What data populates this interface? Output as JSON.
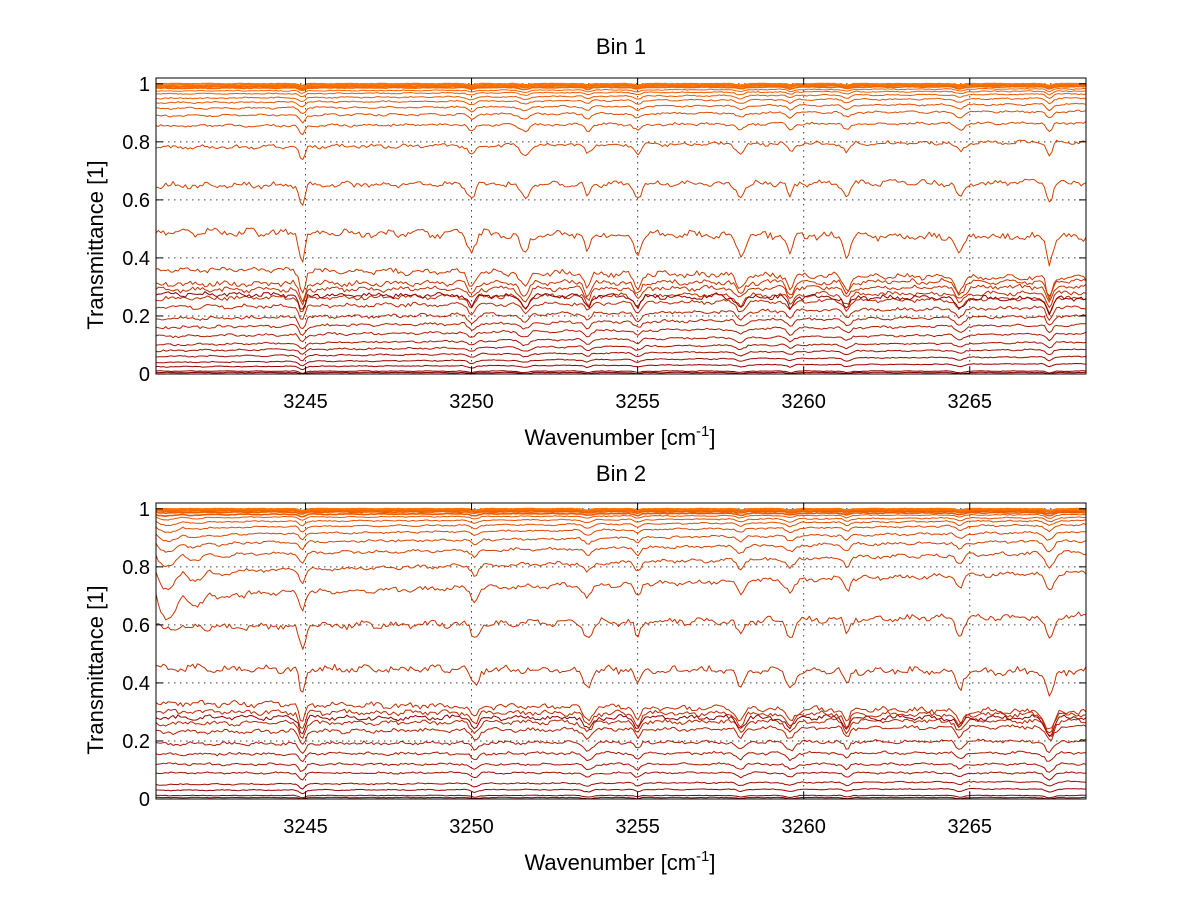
{
  "chart_data": [
    {
      "type": "line",
      "title": "Bin 1",
      "xlabel": "Wavenumber [cm",
      "xlabel_superscript": "-1",
      "xlabel_suffix": "]",
      "ylabel": "Transmittance [1]",
      "xlim": [
        3240.5,
        3268.5
      ],
      "ylim": [
        0,
        1.02
      ],
      "xticks": [
        3245,
        3250,
        3255,
        3260,
        3265
      ],
      "yticks": [
        0,
        0.2,
        0.4,
        0.6,
        0.8,
        1
      ],
      "ytick_labels": [
        "0",
        "0.2",
        "0.4",
        "0.6",
        "0.8",
        "1"
      ],
      "grid": true,
      "absorption_lines": [
        3244.9,
        3250.0,
        3251.6,
        3253.5,
        3255.0,
        3258.1,
        3259.6,
        3261.3,
        3264.7,
        3267.4
      ],
      "series": [
        {
          "color": "#8b0000",
          "values": [
            0.005,
            0.005
          ]
        },
        {
          "color": "#8b0000",
          "values": [
            0.01,
            0.01
          ]
        },
        {
          "color": "#990000",
          "values": [
            0.025,
            0.035
          ]
        },
        {
          "color": "#9b0a00",
          "values": [
            0.04,
            0.06
          ]
        },
        {
          "color": "#a00f00",
          "values": [
            0.06,
            0.085
          ]
        },
        {
          "color": "#a51400",
          "values": [
            0.08,
            0.11
          ]
        },
        {
          "color": "#aa1800",
          "values": [
            0.1,
            0.14
          ]
        },
        {
          "color": "#ae1c00",
          "values": [
            0.13,
            0.17
          ]
        },
        {
          "color": "#b22000",
          "values": [
            0.16,
            0.2
          ]
        },
        {
          "color": "#b62400",
          "values": [
            0.19,
            0.23
          ]
        },
        {
          "color": "#ba2800",
          "values": [
            0.23,
            0.26
          ]
        },
        {
          "color": "#be2c00",
          "values": [
            0.26,
            0.28
          ]
        },
        {
          "color": "#8b0000",
          "values": [
            0.275,
            0.26
          ]
        },
        {
          "color": "#c23000",
          "values": [
            0.29,
            0.3
          ]
        },
        {
          "color": "#c63400",
          "values": [
            0.31,
            0.32
          ]
        },
        {
          "color": "#ca3800",
          "values": [
            0.36,
            0.33
          ]
        },
        {
          "color": "#ce3c00",
          "values": [
            0.49,
            0.47
          ]
        },
        {
          "color": "#d24000",
          "values": [
            0.65,
            0.66
          ]
        },
        {
          "color": "#d64400",
          "values": [
            0.78,
            0.8
          ]
        },
        {
          "color": "#da4800",
          "values": [
            0.855,
            0.865
          ]
        },
        {
          "color": "#de4c00",
          "values": [
            0.89,
            0.905
          ]
        },
        {
          "color": "#e25000",
          "values": [
            0.915,
            0.93
          ]
        },
        {
          "color": "#e65400",
          "values": [
            0.935,
            0.95
          ]
        },
        {
          "color": "#e95800",
          "values": [
            0.95,
            0.965
          ]
        },
        {
          "color": "#ec5c00",
          "values": [
            0.965,
            0.975
          ]
        },
        {
          "color": "#ef6000",
          "values": [
            0.975,
            0.983
          ]
        },
        {
          "color": "#f26500",
          "values": [
            0.985,
            0.99
          ]
        },
        {
          "color": "#f46a00",
          "values": [
            0.99,
            0.995
          ]
        },
        {
          "color": "#f76f00",
          "values": [
            0.995,
            0.998
          ]
        },
        {
          "color": "#fa7600",
          "values": [
            1.0,
            1.0
          ]
        }
      ]
    },
    {
      "type": "line",
      "title": "Bin 2",
      "xlabel": "Wavenumber [cm",
      "xlabel_superscript": "-1",
      "xlabel_suffix": "]",
      "ylabel": "Transmittance [1]",
      "xlim": [
        3240.5,
        3268.5
      ],
      "ylim": [
        0,
        1.02
      ],
      "xticks": [
        3245,
        3250,
        3255,
        3260,
        3265
      ],
      "yticks": [
        0,
        0.2,
        0.4,
        0.6,
        0.8,
        1
      ],
      "ytick_labels": [
        "0",
        "0.2",
        "0.4",
        "0.6",
        "0.8",
        "1"
      ],
      "grid": true,
      "absorption_lines": [
        3244.9,
        3250.1,
        3253.5,
        3255.0,
        3258.1,
        3259.6,
        3261.3,
        3264.7,
        3267.4
      ],
      "series": [
        {
          "color": "#8b0000",
          "values": [
            0.005,
            0.005
          ]
        },
        {
          "color": "#8b0000",
          "values": [
            0.012,
            0.012
          ]
        },
        {
          "color": "#990000",
          "values": [
            0.03,
            0.035
          ]
        },
        {
          "color": "#9b0a00",
          "values": [
            0.05,
            0.06
          ]
        },
        {
          "color": "#a00f00",
          "values": [
            0.09,
            0.09
          ]
        },
        {
          "color": "#a51400",
          "values": [
            0.12,
            0.12
          ]
        },
        {
          "color": "#aa1800",
          "values": [
            0.155,
            0.16
          ]
        },
        {
          "color": "#ae1c00",
          "values": [
            0.19,
            0.2
          ]
        },
        {
          "color": "#b22000",
          "values": [
            0.23,
            0.25
          ]
        },
        {
          "color": "#b62400",
          "values": [
            0.26,
            0.27
          ]
        },
        {
          "color": "#8b0000",
          "values": [
            0.28,
            0.28
          ]
        },
        {
          "color": "#ba2800",
          "values": [
            0.3,
            0.29
          ]
        },
        {
          "color": "#be2c00",
          "values": [
            0.33,
            0.3
          ]
        },
        {
          "color": "#c23000",
          "values": [
            0.45,
            0.44
          ]
        },
        {
          "color": "#c63400",
          "values": [
            0.59,
            0.63
          ]
        },
        {
          "color": "#ca3800",
          "values": [
            0.7,
            0.78
          ]
        },
        {
          "color": "#ce3c00",
          "values": [
            0.78,
            0.85
          ]
        },
        {
          "color": "#d24000",
          "values": [
            0.84,
            0.89
          ]
        },
        {
          "color": "#d64400",
          "values": [
            0.88,
            0.92
          ]
        },
        {
          "color": "#da4800",
          "values": [
            0.91,
            0.945
          ]
        },
        {
          "color": "#de4c00",
          "values": [
            0.935,
            0.96
          ]
        },
        {
          "color": "#e25000",
          "values": [
            0.955,
            0.97
          ]
        },
        {
          "color": "#e65400",
          "values": [
            0.97,
            0.98
          ]
        },
        {
          "color": "#ea5900",
          "values": [
            0.98,
            0.987
          ]
        },
        {
          "color": "#ee5f00",
          "values": [
            0.988,
            0.992
          ]
        },
        {
          "color": "#f26500",
          "values": [
            0.993,
            0.996
          ]
        },
        {
          "color": "#f66e00",
          "values": [
            0.997,
            0.998
          ]
        },
        {
          "color": "#fa7600",
          "values": [
            1.0,
            1.0
          ]
        }
      ]
    }
  ]
}
